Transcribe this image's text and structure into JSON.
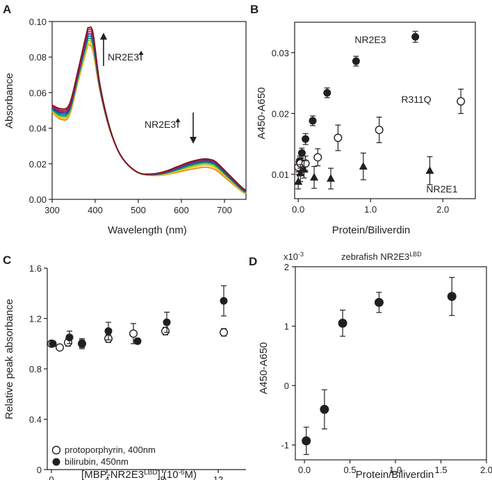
{
  "panels": [
    {
      "id": "A",
      "chart_data": {
        "type": "line",
        "xlabel": "Wavelength (nm)",
        "ylabel": "Absorbance",
        "xlim": [
          300,
          750
        ],
        "ylim": [
          0,
          0.1
        ],
        "xticks": [
          "300",
          "400",
          "500",
          "600",
          "700"
        ],
        "yticks": [
          "0.00",
          "0.02",
          "0.04",
          "0.06",
          "0.08",
          "0.10"
        ],
        "annotations": [
          {
            "text": "NR2E3",
            "arrow": "up",
            "near": "soret-peak"
          },
          {
            "text": "NR2E3",
            "arrow": "down",
            "near": "q-band"
          }
        ],
        "colors": [
          "#f58220",
          "#f9c80e",
          "#8dc63f",
          "#00a651",
          "#0072bc",
          "#2e3192",
          "#92278f",
          "#be1e2d",
          "#7a1522"
        ],
        "series": [
          {
            "color": "#f58220",
            "x": [
              300,
              320,
              340,
              360,
              380,
              385,
              395,
              410,
              430,
              450,
              470,
              500,
              530,
              560,
              590,
              620,
              650,
              665,
              680,
              710,
              740,
              750
            ],
            "y": [
              0.049,
              0.045,
              0.047,
              0.066,
              0.084,
              0.087,
              0.083,
              0.062,
              0.042,
              0.029,
              0.021,
              0.015,
              0.0135,
              0.0138,
              0.0152,
              0.0168,
              0.018,
              0.0178,
              0.0165,
              0.0105,
              0.0045,
              0.003
            ]
          },
          {
            "color": "#f9c80e",
            "x": [
              300,
              320,
              340,
              360,
              380,
              385,
              395,
              410,
              430,
              450,
              470,
              500,
              530,
              560,
              590,
              620,
              650,
              665,
              680,
              710,
              740,
              750
            ],
            "y": [
              0.0495,
              0.0457,
              0.0478,
              0.0668,
              0.0852,
              0.0882,
              0.0845,
              0.0625,
              0.0422,
              0.029,
              0.021,
              0.015,
              0.0136,
              0.0141,
              0.0157,
              0.0177,
              0.0191,
              0.0189,
              0.0175,
              0.0112,
              0.0049,
              0.0033
            ]
          },
          {
            "color": "#8dc63f",
            "x": [
              300,
              320,
              340,
              360,
              380,
              385,
              395,
              410,
              430,
              450,
              470,
              500,
              530,
              560,
              590,
              620,
              650,
              665,
              680,
              710,
              740,
              750
            ],
            "y": [
              0.05,
              0.0465,
              0.0486,
              0.0676,
              0.0864,
              0.0894,
              0.0858,
              0.063,
              0.0424,
              0.029,
              0.021,
              0.015,
              0.0137,
              0.0144,
              0.0162,
              0.0184,
              0.0199,
              0.0197,
              0.0183,
              0.0117,
              0.0052,
              0.0036
            ]
          },
          {
            "color": "#00a651",
            "x": [
              300,
              320,
              340,
              360,
              380,
              385,
              395,
              410,
              430,
              450,
              470,
              500,
              530,
              560,
              590,
              620,
              650,
              665,
              680,
              710,
              740,
              750
            ],
            "y": [
              0.0505,
              0.0472,
              0.0494,
              0.0684,
              0.0876,
              0.0906,
              0.0871,
              0.0635,
              0.0426,
              0.029,
              0.021,
              0.015,
              0.0138,
              0.0146,
              0.0166,
              0.019,
              0.0206,
              0.0204,
              0.019,
              0.0122,
              0.0055,
              0.0039
            ]
          },
          {
            "color": "#0072bc",
            "x": [
              300,
              320,
              340,
              360,
              380,
              385,
              395,
              410,
              430,
              450,
              470,
              500,
              530,
              560,
              590,
              620,
              650,
              665,
              680,
              710,
              740,
              750
            ],
            "y": [
              0.051,
              0.048,
              0.0502,
              0.0692,
              0.0888,
              0.0918,
              0.0884,
              0.064,
              0.0428,
              0.029,
              0.021,
              0.015,
              0.0139,
              0.0148,
              0.017,
              0.0196,
              0.0212,
              0.021,
              0.0196,
              0.0127,
              0.0058,
              0.0042
            ]
          },
          {
            "color": "#2e3192",
            "x": [
              300,
              320,
              340,
              360,
              380,
              385,
              395,
              410,
              430,
              450,
              470,
              500,
              530,
              560,
              590,
              620,
              650,
              665,
              680,
              710,
              740,
              750
            ],
            "y": [
              0.0515,
              0.0488,
              0.051,
              0.07,
              0.09,
              0.093,
              0.0897,
              0.0645,
              0.043,
              0.029,
              0.021,
              0.015,
              0.014,
              0.015,
              0.0174,
              0.0201,
              0.0217,
              0.0215,
              0.0201,
              0.0131,
              0.0061,
              0.0045
            ]
          },
          {
            "color": "#92278f",
            "x": [
              300,
              320,
              340,
              360,
              380,
              385,
              395,
              410,
              430,
              450,
              470,
              500,
              530,
              560,
              590,
              620,
              650,
              665,
              680,
              710,
              740,
              750
            ],
            "y": [
              0.052,
              0.0495,
              0.0518,
              0.0708,
              0.0912,
              0.0942,
              0.091,
              0.065,
              0.0432,
              0.029,
              0.021,
              0.015,
              0.0141,
              0.0152,
              0.0177,
              0.0205,
              0.0221,
              0.0219,
              0.0205,
              0.0135,
              0.0064,
              0.0048
            ]
          },
          {
            "color": "#be1e2d",
            "x": [
              300,
              320,
              340,
              360,
              380,
              385,
              395,
              410,
              430,
              450,
              470,
              500,
              530,
              560,
              590,
              620,
              650,
              665,
              680,
              710,
              740,
              750
            ],
            "y": [
              0.0525,
              0.0502,
              0.0526,
              0.0716,
              0.0924,
              0.0954,
              0.0923,
              0.0655,
              0.0434,
              0.029,
              0.021,
              0.015,
              0.0142,
              0.0154,
              0.018,
              0.0208,
              0.0224,
              0.0222,
              0.0208,
              0.0138,
              0.0066,
              0.005
            ]
          },
          {
            "color": "#7a1522",
            "x": [
              300,
              320,
              340,
              360,
              380,
              385,
              395,
              410,
              430,
              450,
              470,
              500,
              530,
              560,
              590,
              620,
              650,
              665,
              680,
              710,
              740,
              750
            ],
            "y": [
              0.053,
              0.051,
              0.0534,
              0.0724,
              0.0935,
              0.0965,
              0.0935,
              0.066,
              0.0436,
              0.029,
              0.021,
              0.015,
              0.0143,
              0.0156,
              0.0183,
              0.0211,
              0.0227,
              0.0225,
              0.0211,
              0.014,
              0.0068,
              0.0052
            ]
          }
        ]
      }
    },
    {
      "id": "B",
      "chart_data": {
        "type": "scatter",
        "xlabel": "Protein/Biliverdin",
        "ylabel": "A450-A650",
        "xlim": [
          -0.05,
          2.45
        ],
        "ylim": [
          0.006,
          0.035
        ],
        "xticks": [
          "0.0",
          "1.0",
          "2.0"
        ],
        "xtick_values": [
          0,
          1,
          2
        ],
        "yticks": [
          "0.01",
          "0.02",
          "0.03"
        ],
        "ytick_values": [
          0.01,
          0.02,
          0.03
        ],
        "series": [
          {
            "name": "NR2E3",
            "marker": "filled-circle",
            "x": [
              0,
              0.02,
              0.05,
              0.1,
              0.2,
              0.4,
              0.8,
              1.62
            ],
            "y": [
              0.0112,
              0.0122,
              0.0135,
              0.0158,
              0.0188,
              0.0234,
              0.0286,
              0.0326
            ],
            "err": [
              0.0008,
              0.0008,
              0.0008,
              0.0009,
              0.0008,
              0.0008,
              0.0008,
              0.0009
            ]
          },
          {
            "name": "R311Q",
            "marker": "open-circle",
            "x": [
              0,
              0.03,
              0.1,
              0.27,
              0.55,
              1.12,
              2.25
            ],
            "y": [
              0.0112,
              0.0118,
              0.0118,
              0.0128,
              0.016,
              0.0173,
              0.022
            ],
            "err": [
              0.0008,
              0.0008,
              0.0012,
              0.0014,
              0.0021,
              0.0021,
              0.002
            ]
          },
          {
            "name": "NR2E1",
            "marker": "filled-triangle",
            "x": [
              0,
              0.03,
              0.08,
              0.22,
              0.45,
              0.9,
              1.82
            ],
            "y": [
              0.0088,
              0.0102,
              0.0108,
              0.0095,
              0.0093,
              0.0113,
              0.0106
            ],
            "err": [
              0.0012,
              0.0014,
              0.0014,
              0.0018,
              0.0017,
              0.0022,
              0.0023
            ]
          }
        ]
      }
    },
    {
      "id": "C",
      "chart_data": {
        "type": "scatter",
        "xlabel": "[MBP-NR2E3",
        "xlabel_sup": "LBD",
        "xlabel_tail": "] (10",
        "xlabel_exp": "-6",
        "xlabel_unit": "M)",
        "ylabel": "Relative peak absorbance",
        "xlim": [
          -0.3,
          14
        ],
        "ylim": [
          0,
          1.6
        ],
        "xticks": [
          "0",
          "4",
          "8",
          "12"
        ],
        "xtick_values": [
          0,
          4,
          8,
          12
        ],
        "yticks": [
          "0",
          "0.4",
          "0.8",
          "1.2",
          "1.6"
        ],
        "ytick_values": [
          0,
          0.4,
          0.8,
          1.2,
          1.6
        ],
        "legend_position": "bottom-left",
        "series": [
          {
            "name": "protoporphyrin, 400nm",
            "marker": "open-circle",
            "x": [
              0,
              0.6,
              1.2,
              2.2,
              4.1,
              5.9,
              8.2,
              12.4
            ],
            "y": [
              1.0,
              0.97,
              1.01,
              1.0,
              1.04,
              1.08,
              1.1,
              1.09
            ],
            "err": [
              0.02,
              0.02,
              0.03,
              0.03,
              0.03,
              0.08,
              0.03,
              0.03
            ]
          },
          {
            "name": "bilirubin, 450nm",
            "marker": "filled-circle",
            "x": [
              0.1,
              1.3,
              2.2,
              4.1,
              6.2,
              8.3,
              12.4
            ],
            "y": [
              1.0,
              1.05,
              1.0,
              1.1,
              1.02,
              1.17,
              1.34
            ],
            "err": [
              0.02,
              0.05,
              0.04,
              0.07,
              0.02,
              0.08,
              0.12
            ]
          }
        ]
      }
    },
    {
      "id": "D",
      "chart_data": {
        "type": "scatter",
        "title": "zebrafish NR2E3",
        "title_sup": "LBD",
        "multiplier": "x10",
        "multiplier_exp": "-3",
        "xlabel": "Protein/Biliverdin",
        "ylabel": "A450-A650",
        "xlim": [
          -0.1,
          2.0
        ],
        "ylim": [
          -1.25,
          2.0
        ],
        "xticks": [
          "0.0",
          "0.5",
          "1.0",
          "1.5",
          "2.0"
        ],
        "xtick_values": [
          0,
          0.5,
          1.0,
          1.5,
          2.0
        ],
        "yticks": [
          "-1",
          "0",
          "1",
          "2"
        ],
        "ytick_values": [
          -1,
          0,
          1,
          2
        ],
        "series": [
          {
            "marker": "filled-circle",
            "x": [
              0.02,
              0.22,
              0.42,
              0.82,
              1.62
            ],
            "y": [
              -0.93,
              -0.4,
              1.05,
              1.4,
              1.5
            ],
            "err": [
              0.23,
              0.33,
              0.22,
              0.17,
              0.32
            ]
          }
        ]
      }
    }
  ]
}
